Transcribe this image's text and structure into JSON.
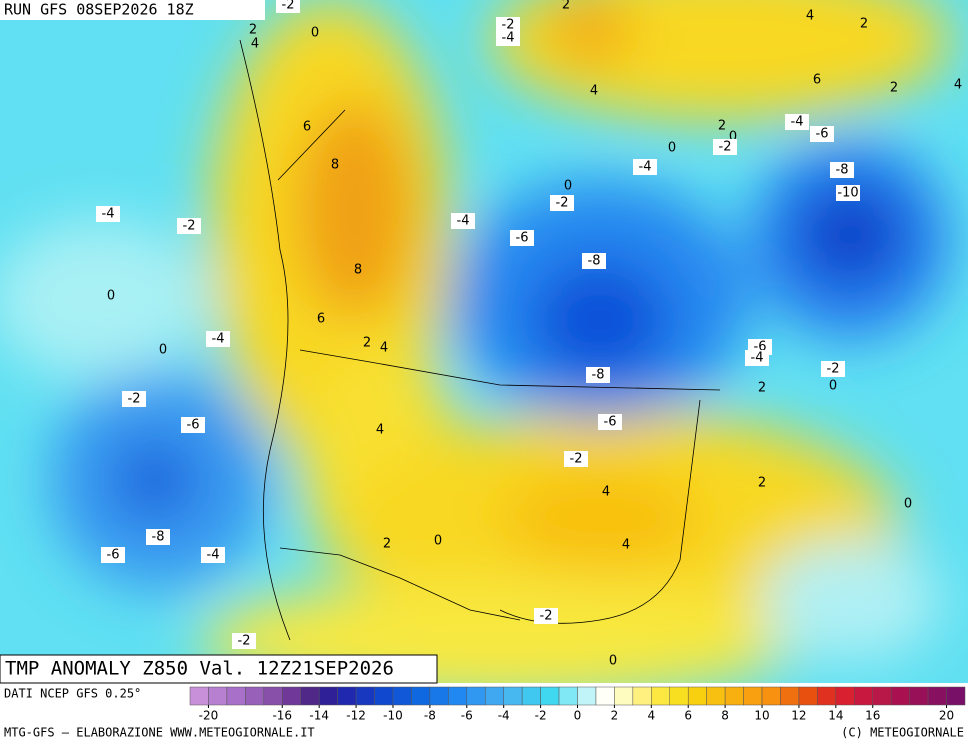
{
  "header": {
    "run": "RUN GFS 08SEP2026 18Z"
  },
  "map": {
    "title": "TMP ANOMALY Z850 Val. 12Z21SEP2026",
    "contour_labels": [
      -2,
      2,
      4,
      0,
      -2,
      -4,
      2,
      4,
      2,
      6,
      2,
      4,
      4,
      6,
      8,
      8,
      6,
      2,
      0,
      -2,
      0,
      -4,
      -6,
      -4,
      -8,
      -10,
      0,
      -2,
      -4,
      -6,
      -8,
      -4,
      -2,
      0,
      0,
      -4,
      2,
      4,
      -6,
      -4,
      -2,
      0,
      2,
      -8,
      -2,
      -6,
      -6,
      4,
      -2,
      4,
      2,
      0,
      -8,
      -6,
      -4,
      2,
      0,
      4,
      -2,
      -2,
      0
    ]
  },
  "legend": {
    "source": "DATI NCEP GFS 0.25°",
    "colors": [
      "#c890d8",
      "#b880d0",
      "#a870c8",
      "#9860b8",
      "#8850a8",
      "#703898",
      "#502888",
      "#302098",
      "#2028b0",
      "#1838c0",
      "#1048d0",
      "#1058d8",
      "#1068e0",
      "#1878e8",
      "#2088f0",
      "#3098f0",
      "#40a8f0",
      "#48b8f0",
      "#40c8f0",
      "#40d8f0",
      "#80e8f4",
      "#c0f4f8",
      "#fffff8",
      "#fffcc0",
      "#fff080",
      "#fce840",
      "#f8e020",
      "#f8d010",
      "#f8c010",
      "#f8b010",
      "#f8a010",
      "#f89010",
      "#f07010",
      "#e85010",
      "#e03020",
      "#d82030",
      "#c81840",
      "#b81848",
      "#a81050",
      "#981058",
      "#881060",
      "#781068"
    ],
    "min": -21,
    "max": 21,
    "ticks": [
      -20,
      -16,
      -14,
      -12,
      -10,
      -8,
      -6,
      -4,
      -2,
      0,
      2,
      4,
      6,
      8,
      10,
      12,
      14,
      16,
      20
    ]
  },
  "footer": {
    "left": "MTG-GFS — ELABORAZIONE WWW.METEOGIORNALE.IT",
    "right": "(C) METEOGIORNALE"
  }
}
